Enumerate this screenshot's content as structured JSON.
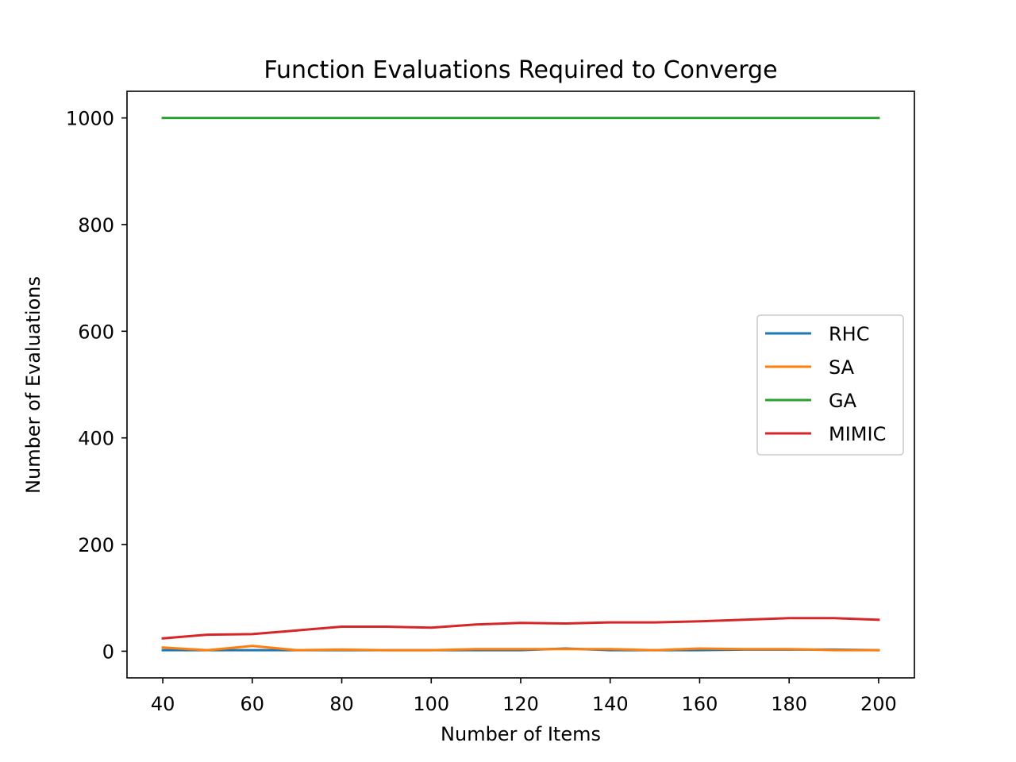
{
  "chart_data": {
    "type": "line",
    "title": "Function Evaluations Required to Converge",
    "xlabel": "Number of Items",
    "ylabel": "Number of Evaluations",
    "xlim": [
      32,
      208
    ],
    "ylim": [
      -50,
      1050
    ],
    "xticks": [
      40,
      60,
      80,
      100,
      120,
      140,
      160,
      180,
      200
    ],
    "yticks": [
      0,
      200,
      400,
      600,
      800,
      1000
    ],
    "grid": false,
    "legend_position": "center-right",
    "x": [
      40,
      50,
      60,
      70,
      80,
      90,
      100,
      110,
      120,
      130,
      140,
      150,
      160,
      170,
      180,
      190,
      200
    ],
    "series": [
      {
        "name": "RHC",
        "color": "#1f77b4",
        "values": [
          2,
          2,
          2,
          2,
          2,
          2,
          2,
          2,
          2,
          5,
          2,
          2,
          2,
          3,
          3,
          3,
          2
        ]
      },
      {
        "name": "SA",
        "color": "#ff7f0e",
        "values": [
          7,
          2,
          10,
          2,
          3,
          2,
          2,
          4,
          4,
          4,
          4,
          2,
          5,
          4,
          4,
          2,
          2
        ]
      },
      {
        "name": "GA",
        "color": "#2ca02c",
        "values": [
          1000,
          1000,
          1000,
          1000,
          1000,
          1000,
          1000,
          1000,
          1000,
          1000,
          1000,
          1000,
          1000,
          1000,
          1000,
          1000,
          1000
        ]
      },
      {
        "name": "MIMIC",
        "color": "#d62728",
        "values": [
          24,
          31,
          32,
          39,
          46,
          46,
          44,
          50,
          53,
          52,
          54,
          54,
          56,
          59,
          62,
          62,
          59
        ]
      }
    ]
  }
}
